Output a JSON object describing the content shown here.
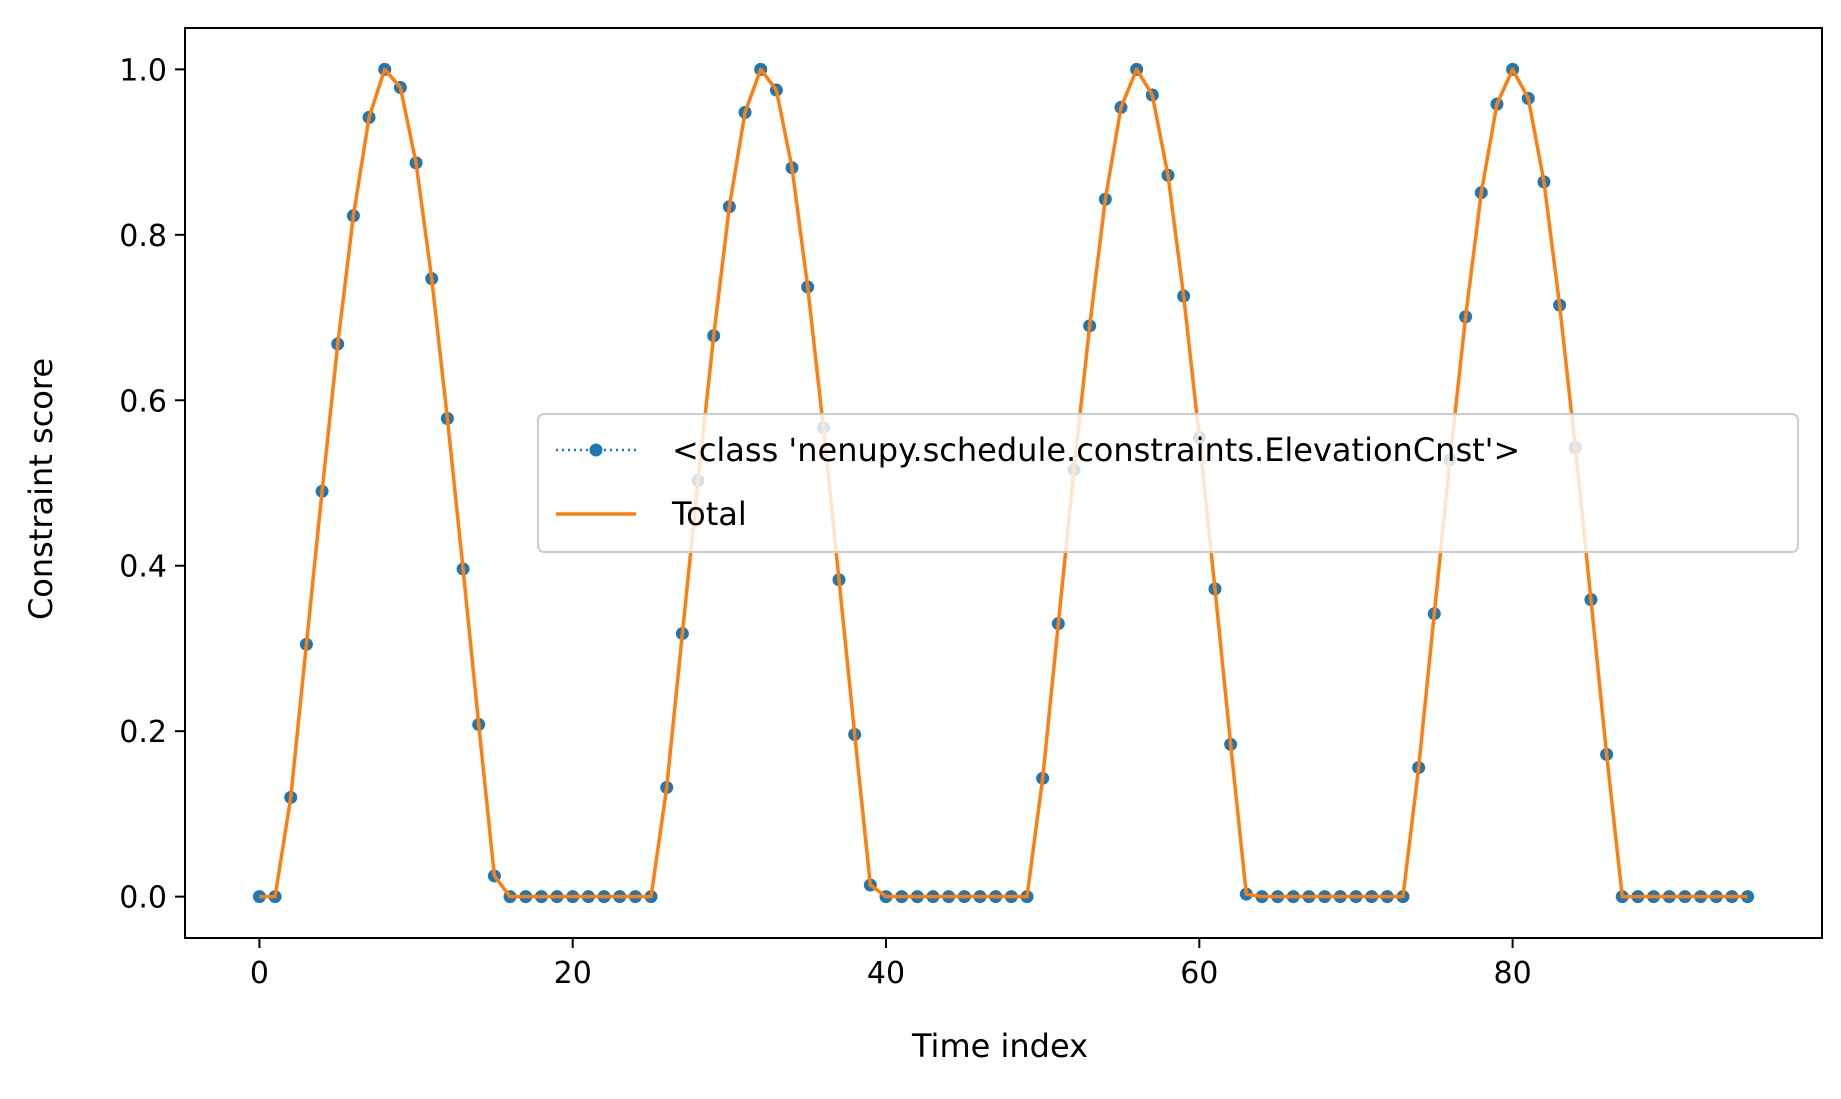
{
  "chart_data": {
    "type": "line",
    "title": "",
    "xlabel": "Time index",
    "ylabel": "Constraint score",
    "xlim": [
      -4.75,
      99.75
    ],
    "ylim": [
      -0.05,
      1.05
    ],
    "xticks": [
      0,
      20,
      40,
      60,
      80
    ],
    "yticks": [
      0.0,
      0.2,
      0.4,
      0.6,
      0.8,
      1.0
    ],
    "xtick_labels": [
      "0",
      "20",
      "40",
      "60",
      "80"
    ],
    "ytick_labels": [
      "0.0",
      "0.2",
      "0.4",
      "0.6",
      "0.8",
      "1.0"
    ],
    "grid": false,
    "legend_position": "center-right",
    "x": [
      0,
      1,
      2,
      3,
      4,
      5,
      6,
      7,
      8,
      9,
      10,
      11,
      12,
      13,
      14,
      15,
      16,
      17,
      18,
      19,
      20,
      21,
      22,
      23,
      24,
      25,
      26,
      27,
      28,
      29,
      30,
      31,
      32,
      33,
      34,
      35,
      36,
      37,
      38,
      39,
      40,
      41,
      42,
      43,
      44,
      45,
      46,
      47,
      48,
      49,
      50,
      51,
      52,
      53,
      54,
      55,
      56,
      57,
      58,
      59,
      60,
      61,
      62,
      63,
      64,
      65,
      66,
      67,
      68,
      69,
      70,
      71,
      72,
      73,
      74,
      75,
      76,
      77,
      78,
      79,
      80,
      81,
      82,
      83,
      84,
      85,
      86,
      87,
      88,
      89,
      90,
      91,
      92,
      93,
      94,
      95
    ],
    "series": [
      {
        "name": "<class 'nenupy.schedule.constraints.ElevationCnst'>",
        "style": "dotted-markers",
        "color": "#1f77b4",
        "values": [
          0,
          0,
          0.12,
          0.305,
          0.49,
          0.668,
          0.823,
          0.942,
          1.0,
          0.978,
          0.887,
          0.747,
          0.578,
          0.396,
          0.208,
          0.025,
          0,
          0,
          0,
          0,
          0,
          0,
          0,
          0,
          0,
          0,
          0.132,
          0.318,
          0.503,
          0.678,
          0.834,
          0.948,
          1.0,
          0.975,
          0.881,
          0.737,
          0.567,
          0.383,
          0.196,
          0.014,
          0,
          0,
          0,
          0,
          0,
          0,
          0,
          0,
          0,
          0,
          0.143,
          0.33,
          0.516,
          0.69,
          0.843,
          0.954,
          1.0,
          0.969,
          0.872,
          0.726,
          0.555,
          0.372,
          0.184,
          0.003,
          0,
          0,
          0,
          0,
          0,
          0,
          0,
          0,
          0,
          0,
          0.156,
          0.342,
          0.528,
          0.701,
          0.851,
          0.958,
          1.0,
          0.965,
          0.864,
          0.715,
          0.543,
          0.359,
          0.172,
          0,
          0,
          0,
          0,
          0,
          0,
          0,
          0,
          0
        ]
      },
      {
        "name": "Total",
        "style": "solid",
        "color": "#ff7f0e",
        "values": [
          0,
          0,
          0.12,
          0.305,
          0.49,
          0.668,
          0.823,
          0.942,
          1.0,
          0.978,
          0.887,
          0.747,
          0.578,
          0.396,
          0.208,
          0.025,
          0,
          0,
          0,
          0,
          0,
          0,
          0,
          0,
          0,
          0,
          0.132,
          0.318,
          0.503,
          0.678,
          0.834,
          0.948,
          1.0,
          0.975,
          0.881,
          0.737,
          0.567,
          0.383,
          0.196,
          0.014,
          0,
          0,
          0,
          0,
          0,
          0,
          0,
          0,
          0,
          0,
          0.143,
          0.33,
          0.516,
          0.69,
          0.843,
          0.954,
          1.0,
          0.969,
          0.872,
          0.726,
          0.555,
          0.372,
          0.184,
          0.003,
          0,
          0,
          0,
          0,
          0,
          0,
          0,
          0,
          0,
          0,
          0.156,
          0.342,
          0.528,
          0.701,
          0.851,
          0.958,
          1.0,
          0.965,
          0.864,
          0.715,
          0.543,
          0.359,
          0.172,
          0,
          0,
          0,
          0,
          0,
          0,
          0,
          0,
          0
        ]
      }
    ]
  }
}
